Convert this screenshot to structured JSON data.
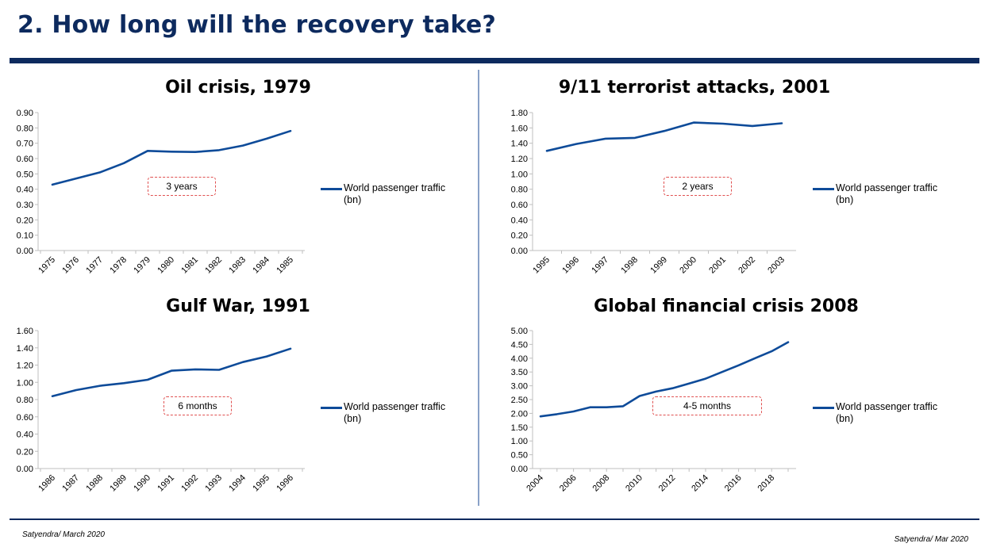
{
  "slide": {
    "title": "2. How long will the recovery take?",
    "footer_left": "Satyendra/ March 2020",
    "footer_right": "Satyendra/ Mar 2020"
  },
  "colors": {
    "line": "#0e4b99",
    "rule": "#0d2a5e",
    "annotation_border": "#e05050"
  },
  "chart_data": [
    {
      "type": "line",
      "title": "Oil crisis, 1979",
      "categories": [
        "1975",
        "1976",
        "1977",
        "1978",
        "1979",
        "1980",
        "1981",
        "1982",
        "1983",
        "1984",
        "1985"
      ],
      "series": [
        {
          "name": "World passenger traffic (bn)",
          "values": [
            0.43,
            0.47,
            0.51,
            0.57,
            0.65,
            0.645,
            0.643,
            0.655,
            0.685,
            0.73,
            0.78
          ]
        }
      ],
      "y_ticks": [
        "0.00",
        "0.10",
        "0.20",
        "0.30",
        "0.40",
        "0.50",
        "0.60",
        "0.70",
        "0.80",
        "0.90"
      ],
      "ylim": [
        0,
        0.9
      ],
      "annotation": "3 years",
      "legend_line1": "World passenger traffic",
      "legend_line2": "(bn)",
      "legend": "right"
    },
    {
      "type": "line",
      "title": "9/11 terrorist attacks, 2001",
      "categories": [
        "1995",
        "1996",
        "1997",
        "1998",
        "1999",
        "2000",
        "2001",
        "2002",
        "2003"
      ],
      "series": [
        {
          "name": "World passenger traffic (bn)",
          "values": [
            1.3,
            1.39,
            1.46,
            1.47,
            1.56,
            1.67,
            1.655,
            1.625,
            1.66
          ]
        }
      ],
      "y_ticks": [
        "0.00",
        "0.20",
        "0.40",
        "0.60",
        "0.80",
        "1.00",
        "1.20",
        "1.40",
        "1.60",
        "1.80"
      ],
      "ylim": [
        0,
        1.8
      ],
      "annotation": "2 years",
      "legend_line1": "World passenger traffic",
      "legend_line2": "(bn)",
      "legend": "right"
    },
    {
      "type": "line",
      "title": "Gulf War, 1991",
      "categories": [
        "1986",
        "1987",
        "1988",
        "1989",
        "1990",
        "1991",
        "1992",
        "1993",
        "1994",
        "1995",
        "1996"
      ],
      "series": [
        {
          "name": "World passenger traffic (bn)",
          "values": [
            0.84,
            0.91,
            0.96,
            0.99,
            1.03,
            1.135,
            1.15,
            1.145,
            1.235,
            1.3,
            1.39
          ]
        }
      ],
      "y_ticks": [
        "0.00",
        "0.20",
        "0.40",
        "0.60",
        "0.80",
        "1.00",
        "1.20",
        "1.40",
        "1.60"
      ],
      "ylim": [
        0,
        1.6
      ],
      "annotation": "6 months",
      "legend_line1": "World passenger traffic",
      "legend_line2": "(bn)",
      "legend": "right"
    },
    {
      "type": "line",
      "title": "Global financial crisis 2008",
      "categories": [
        "2004",
        "2005",
        "2006",
        "2007",
        "2008",
        "2009",
        "2010",
        "2011",
        "2012",
        "2013",
        "2014",
        "2015",
        "2016",
        "2017",
        "2018",
        "2019"
      ],
      "tick_labels": [
        "2004",
        "2006",
        "2008",
        "2010",
        "2012",
        "2014",
        "2016",
        "2018"
      ],
      "series": [
        {
          "name": "World passenger traffic (bn)",
          "values": [
            1.89,
            1.97,
            2.07,
            2.22,
            2.22,
            2.26,
            2.63,
            2.79,
            2.91,
            3.08,
            3.26,
            3.5,
            3.74,
            4.0,
            4.25,
            4.58
          ]
        }
      ],
      "y_ticks": [
        "0.00",
        "0.50",
        "1.00",
        "1.50",
        "2.00",
        "2.50",
        "3.00",
        "3.50",
        "4.00",
        "4.50",
        "5.00"
      ],
      "ylim": [
        0,
        5.0
      ],
      "annotation": "4-5 months",
      "legend_line1": "World passenger traffic",
      "legend_line2": "(bn)",
      "legend": "right"
    }
  ]
}
